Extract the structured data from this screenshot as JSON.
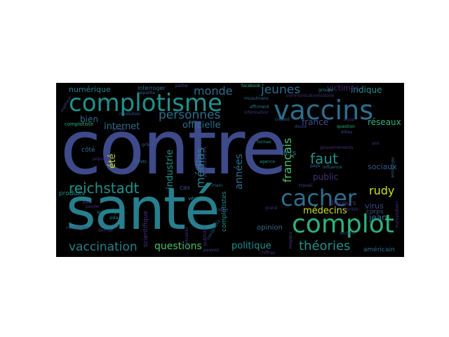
{
  "wordcloud": {
    "background": "#000000",
    "palette": {
      "navy": "#46337e",
      "indigo": "#3e4a89",
      "slate": "#365c8d",
      "blue": "#2e6e8e",
      "teal": "#277f8e",
      "sea": "#21918c",
      "green": "#1fa187",
      "jade": "#2db27d",
      "lime": "#4ac16d",
      "chartreuse": "#71cf57",
      "yellowgreen": "#a0da39",
      "yellow": "#d0e11c",
      "purple": "#482878",
      "dark": "#440154"
    },
    "words": [
      {
        "text": "contre",
        "color": "#3e4a89"
      },
      {
        "text": "santé",
        "color": "#277f8e"
      },
      {
        "text": "complotisme",
        "color": "#21918c"
      },
      {
        "text": "vaccins",
        "color": "#2e6e8e"
      },
      {
        "text": "complot",
        "color": "#2db27d"
      },
      {
        "text": "cacher",
        "color": "#2e6e8e"
      },
      {
        "text": "reichstadt",
        "color": "#21918c"
      },
      {
        "text": "vaccination",
        "color": "#277f8e"
      },
      {
        "text": "théories",
        "color": "#21918c"
      },
      {
        "text": "personnes",
        "color": "#2e6e8e"
      },
      {
        "text": "faut",
        "color": "#21918c"
      },
      {
        "text": "monde",
        "color": "#2e6e8e"
      },
      {
        "text": "jeunes",
        "color": "#2e6e8e"
      },
      {
        "text": "médias",
        "color": "#277f8e"
      },
      {
        "text": "années",
        "color": "#2e6e8e"
      },
      {
        "text": "français",
        "color": "#4ac16d"
      },
      {
        "text": "questions",
        "color": "#4ac16d"
      },
      {
        "text": "rudy",
        "color": "#d0e11c"
      },
      {
        "text": "médecins",
        "color": "#d0e11c"
      },
      {
        "text": "politique",
        "color": "#21918c"
      },
      {
        "text": "internet",
        "color": "#2e6e8e"
      },
      {
        "text": "officielle",
        "color": "#2e6e8e"
      },
      {
        "text": "industrie",
        "color": "#21918c"
      },
      {
        "text": "été",
        "color": "#d0e11c"
      },
      {
        "text": "france",
        "color": "#3e4a89"
      },
      {
        "text": "public",
        "color": "#46337e"
      },
      {
        "text": "indique",
        "color": "#21918c"
      },
      {
        "text": "réseaux",
        "color": "#2db27d"
      },
      {
        "text": "sociaux",
        "color": "#365c8d"
      },
      {
        "text": "victimes",
        "color": "#482878"
      },
      {
        "text": "numérique",
        "color": "#277f8e"
      },
      {
        "text": "bien",
        "color": "#2e6e8e"
      },
      {
        "text": "virus",
        "color": "#3e4a89"
      },
      {
        "text": "jean",
        "color": "#2e6e8e"
      },
      {
        "text": "produits",
        "color": "#21918c"
      },
      {
        "text": "opinion",
        "color": "#2e6e8e"
      },
      {
        "text": "complotistes",
        "color": "#21918c"
      },
      {
        "text": "discours",
        "color": "#46337e"
      },
      {
        "text": "tiers",
        "color": "#2e6e8e"
      },
      {
        "text": "américain",
        "color": "#2e6e8e"
      },
      {
        "text": "côté",
        "color": "#2e6e8e"
      },
      {
        "text": "cas",
        "color": "#3e4a89"
      },
      {
        "text": "corps",
        "color": "#3e4a89"
      },
      {
        "text": "complotiste",
        "color": "#2db27d"
      },
      {
        "text": "interroger",
        "color": "#2e6e8e"
      },
      {
        "text": "scientifique",
        "color": "#46337e"
      },
      {
        "text": "scientifiques",
        "color": "#21918c"
      },
      {
        "text": "vérité",
        "color": "#21918c"
      },
      {
        "text": "idée",
        "color": "#3e4a89"
      },
      {
        "text": "campagne",
        "color": "#3e4a89"
      },
      {
        "text": "parole",
        "color": "#46337e"
      },
      {
        "text": "paul",
        "color": "#46337e"
      },
      {
        "text": "dernier",
        "color": "#46337e"
      },
      {
        "text": "sida",
        "color": "#21918c"
      },
      {
        "text": "révolution",
        "color": "#365c8d"
      },
      {
        "text": "hépatite",
        "color": "#365c8d"
      },
      {
        "text": "partie",
        "color": "#3e4a89"
      },
      {
        "text": "facebook",
        "color": "#2db27d"
      },
      {
        "text": "musulmans",
        "color": "#2e6e8e"
      },
      {
        "text": "affirment",
        "color": "#277f8e"
      },
      {
        "text": "communication",
        "color": "#46337e"
      },
      {
        "text": "histoire",
        "color": "#46337e"
      },
      {
        "text": "groupe",
        "color": "#21918c"
      },
      {
        "text": "information",
        "color": "#46337e"
      },
      {
        "text": "croient",
        "color": "#2e6e8e"
      },
      {
        "text": "doute",
        "color": "#3e4a89"
      },
      {
        "text": "question",
        "color": "#2db27d"
      },
      {
        "text": "aussi",
        "color": "#46337e"
      },
      {
        "text": "élites",
        "color": "#3e4a89"
      },
      {
        "text": "gouvernements",
        "color": "#46337e"
      },
      {
        "text": "influence",
        "color": "#2e6e8e"
      },
      {
        "text": "agence",
        "color": "#21918c"
      },
      {
        "text": "travail",
        "color": "#3e4a89"
      },
      {
        "text": "grand",
        "color": "#46337e"
      },
      {
        "text": "main",
        "color": "#2e6e8e"
      },
      {
        "text": "formes",
        "color": "#21918c"
      },
      {
        "text": "effets",
        "color": "#2e6e8e"
      },
      {
        "text": "population",
        "color": "#46337e"
      },
      {
        "text": "grâce",
        "color": "#365c8d"
      },
      {
        "text": "firmes",
        "color": "#3e4a89"
      },
      {
        "text": "autorités",
        "color": "#46337e"
      },
      {
        "text": "conspiracy",
        "color": "#365c8d"
      },
      {
        "text": "publicité",
        "color": "#46337e"
      },
      {
        "text": "contrainte",
        "color": "#46337e"
      },
      {
        "text": "pouvoir",
        "color": "#3e4a89"
      },
      {
        "text": "chiffres",
        "color": "#46337e"
      },
      {
        "text": "religieuse",
        "color": "#2e6e8e"
      },
      {
        "text": "complotisme",
        "color": "#46337e"
      },
      {
        "text": "professionnels",
        "color": "#46337e"
      },
      {
        "text": "moyens",
        "color": "#3e4a89"
      },
      {
        "text": "secteur",
        "color": "#3e4a89"
      },
      {
        "text": "pays",
        "color": "#2e6e8e"
      },
      {
        "text": "ans",
        "color": "#46337e"
      },
      {
        "text": "malheur",
        "color": "#3e4a89"
      }
    ]
  }
}
